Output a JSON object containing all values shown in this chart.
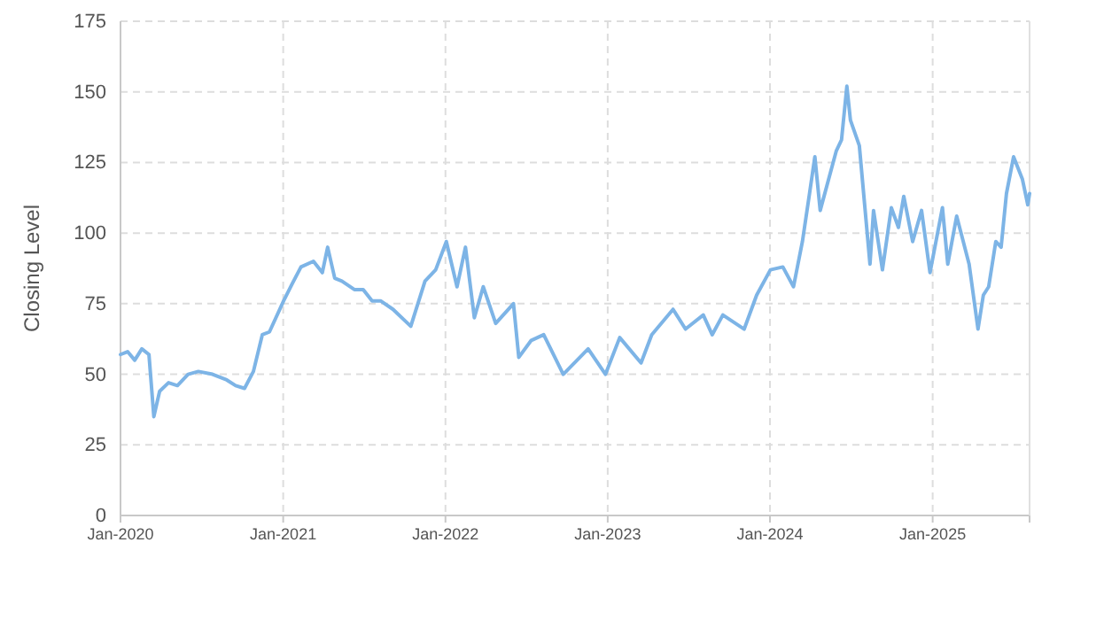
{
  "chart_data": {
    "type": "line",
    "ylabel": "Closing Level",
    "x": [
      "2020-01-01",
      "2020-01-17",
      "2020-02-02",
      "2020-02-18",
      "2020-03-05",
      "2020-03-16",
      "2020-03-29",
      "2020-04-18",
      "2020-05-08",
      "2020-06-01",
      "2020-06-24",
      "2020-07-26",
      "2020-08-27",
      "2020-09-16",
      "2020-10-06",
      "2020-10-26",
      "2020-11-15",
      "2020-12-01",
      "2021-01-02",
      "2021-01-21",
      "2021-02-10",
      "2021-03-10",
      "2021-03-30",
      "2021-04-11",
      "2021-04-27",
      "2021-05-13",
      "2021-06-10",
      "2021-06-30",
      "2021-07-20",
      "2021-08-08",
      "2021-09-05",
      "2021-10-15",
      "2021-11-16",
      "2021-12-10",
      "2022-01-03",
      "2022-01-27",
      "2022-02-15",
      "2022-03-07",
      "2022-03-27",
      "2022-04-24",
      "2022-06-03",
      "2022-06-15",
      "2022-07-13",
      "2022-08-10",
      "2022-09-23",
      "2022-11-18",
      "2022-12-27",
      "2023-01-28",
      "2023-03-17",
      "2023-04-10",
      "2023-05-28",
      "2023-06-25",
      "2023-08-04",
      "2023-08-24",
      "2023-09-17",
      "2023-11-04",
      "2023-12-02",
      "2024-01-02",
      "2024-01-30",
      "2024-02-23",
      "2024-03-14",
      "2024-03-30",
      "2024-04-11",
      "2024-04-23",
      "2024-05-29",
      "2024-06-10",
      "2024-06-22",
      "2024-06-30",
      "2024-07-20",
      "2024-08-01",
      "2024-08-13",
      "2024-08-21",
      "2024-09-10",
      "2024-09-30",
      "2024-10-16",
      "2024-10-28",
      "2024-11-17",
      "2024-12-07",
      "2024-12-26",
      "2025-01-23",
      "2025-02-04",
      "2025-02-24",
      "2025-03-24",
      "2025-04-13",
      "2025-04-25",
      "2025-05-07",
      "2025-05-23",
      "2025-06-04",
      "2025-06-16",
      "2025-07-02",
      "2025-07-22",
      "2025-08-03",
      "2025-08-07"
    ],
    "series": [
      {
        "color": "#7db4e6",
        "values": [
          57,
          58,
          55,
          59,
          57,
          35,
          44,
          47,
          46,
          50,
          51,
          50,
          48,
          46,
          45,
          51,
          64,
          65,
          76,
          82,
          88,
          90,
          86,
          95,
          84,
          83,
          80,
          80,
          76,
          76,
          73,
          67,
          83,
          87,
          97,
          81,
          95,
          70,
          81,
          68,
          75,
          56,
          62,
          64,
          50,
          59,
          50,
          63,
          54,
          64,
          73,
          66,
          71,
          64,
          71,
          66,
          78,
          87,
          88,
          81,
          97,
          114,
          127,
          108,
          129,
          133,
          152,
          140,
          131,
          110,
          89,
          108,
          87,
          109,
          102,
          113,
          97,
          108,
          86,
          109,
          89,
          106,
          89,
          66,
          78,
          81,
          97,
          95,
          114,
          127,
          119,
          110,
          114
        ]
      }
    ],
    "xlim": [
      "2020-01-01",
      "2025-08-07"
    ],
    "xticks": [
      {
        "value": "2020-01-01",
        "label": "Jan-2020"
      },
      {
        "value": "2021-01-01",
        "label": "Jan-2021"
      },
      {
        "value": "2022-01-01",
        "label": "Jan-2022"
      },
      {
        "value": "2023-01-01",
        "label": "Jan-2023"
      },
      {
        "value": "2024-01-01",
        "label": "Jan-2024"
      },
      {
        "value": "2025-01-01",
        "label": "Jan-2025"
      }
    ],
    "ylim": [
      0,
      175
    ],
    "yticks": [
      0,
      25,
      50,
      75,
      100,
      125,
      150,
      175
    ],
    "grid": true,
    "marker": "none",
    "line_style": "solid"
  }
}
